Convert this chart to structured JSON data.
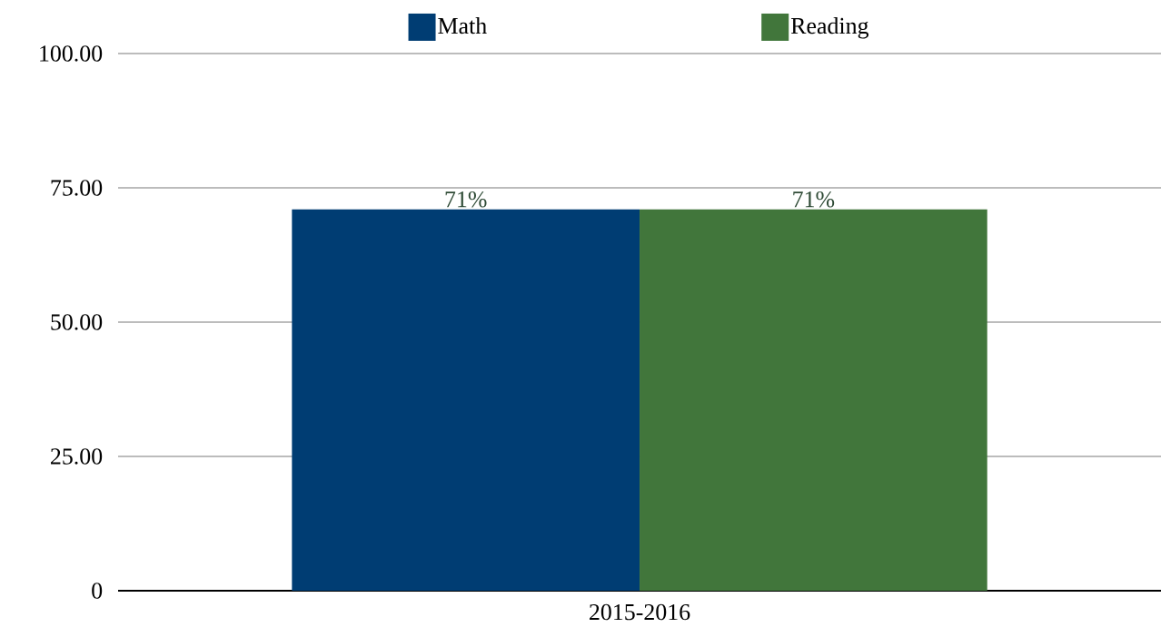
{
  "chart_data": {
    "type": "bar",
    "categories": [
      "2015-2016"
    ],
    "series": [
      {
        "name": "Math",
        "color": "#003d73",
        "values": [
          71
        ],
        "value_labels": [
          "71%"
        ]
      },
      {
        "name": "Reading",
        "color": "#41763b",
        "values": [
          71
        ],
        "value_labels": [
          "71%"
        ]
      }
    ],
    "ylim": [
      0,
      100
    ],
    "yticks": [
      0,
      {
        "value": 25,
        "label": "25.00"
      },
      {
        "value": 50,
        "label": "50.00"
      },
      {
        "value": 75,
        "label": "75.00"
      },
      {
        "value": 100,
        "label": "100.00"
      }
    ],
    "grid": "y",
    "legend": "top"
  }
}
